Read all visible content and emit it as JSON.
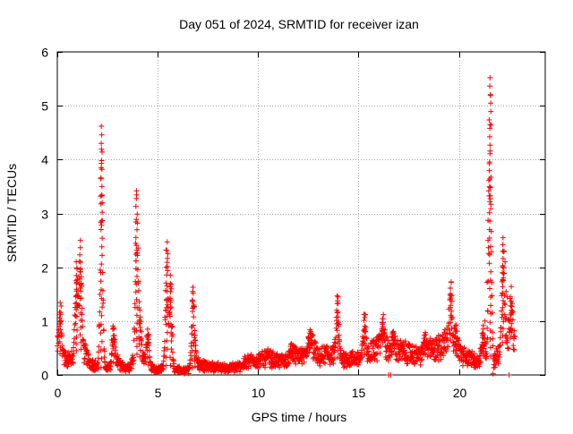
{
  "chart_data": {
    "type": "scatter",
    "title": "Day 051 of 2024, SRMTID for receiver izan",
    "xlabel": "GPS time / hours",
    "ylabel": "SRMTID / TECUs",
    "xlim": [
      0,
      24.3
    ],
    "ylim": [
      0,
      6
    ],
    "x_ticks": [
      0,
      5,
      10,
      15,
      20
    ],
    "y_ticks": [
      0,
      1,
      2,
      3,
      4,
      5,
      6
    ],
    "grid": true,
    "marker": "+",
    "color": "#ff0000",
    "baseline": [
      [
        0,
        0.45
      ],
      [
        0.4,
        0.3
      ],
      [
        0.8,
        0.3
      ],
      [
        1.0,
        0.5
      ],
      [
        1.3,
        0.45
      ],
      [
        1.6,
        0.25
      ],
      [
        2.0,
        0.15
      ],
      [
        2.6,
        0.12
      ],
      [
        2.9,
        0.3
      ],
      [
        3.2,
        0.15
      ],
      [
        3.6,
        0.15
      ],
      [
        3.9,
        0.4
      ],
      [
        4.2,
        0.3
      ],
      [
        4.6,
        0.15
      ],
      [
        5.0,
        0.08
      ],
      [
        5.3,
        0.15
      ],
      [
        5.6,
        0.2
      ],
      [
        5.8,
        0.1
      ],
      [
        6.2,
        0.08
      ],
      [
        6.6,
        0.1
      ],
      [
        7.0,
        0.2
      ],
      [
        7.5,
        0.15
      ],
      [
        8.0,
        0.15
      ],
      [
        8.5,
        0.12
      ],
      [
        9.0,
        0.15
      ],
      [
        9.5,
        0.25
      ],
      [
        10.0,
        0.28
      ],
      [
        10.5,
        0.32
      ],
      [
        11.0,
        0.25
      ],
      [
        11.5,
        0.3
      ],
      [
        12.0,
        0.4
      ],
      [
        12.4,
        0.3
      ],
      [
        12.7,
        0.55
      ],
      [
        13.0,
        0.3
      ],
      [
        13.4,
        0.4
      ],
      [
        13.8,
        0.35
      ],
      [
        14.2,
        0.3
      ],
      [
        14.6,
        0.3
      ],
      [
        15.0,
        0.3
      ],
      [
        15.4,
        0.4
      ],
      [
        15.8,
        0.45
      ],
      [
        16.2,
        0.6
      ],
      [
        16.6,
        0.4
      ],
      [
        17.0,
        0.45
      ],
      [
        17.5,
        0.4
      ],
      [
        18.0,
        0.35
      ],
      [
        18.5,
        0.45
      ],
      [
        19.0,
        0.5
      ],
      [
        19.5,
        0.7
      ],
      [
        19.8,
        0.55
      ],
      [
        20.2,
        0.35
      ],
      [
        20.6,
        0.3
      ],
      [
        21.0,
        0.25
      ],
      [
        21.4,
        0.45
      ],
      [
        21.7,
        0.25
      ],
      [
        22.0,
        0.4
      ],
      [
        22.3,
        0.7
      ],
      [
        22.6,
        0.7
      ],
      [
        22.8,
        0.6
      ]
    ],
    "spikes": [
      {
        "t": 0.15,
        "peak": 1.28
      },
      {
        "t": 0.95,
        "peak": 2.1
      },
      {
        "t": 1.15,
        "peak": 2.5
      },
      {
        "t": 2.2,
        "peak": 4.62
      },
      {
        "t": 2.8,
        "peak": 0.85
      },
      {
        "t": 3.95,
        "peak": 3.42
      },
      {
        "t": 4.1,
        "peak": 1.2
      },
      {
        "t": 4.5,
        "peak": 0.85
      },
      {
        "t": 5.45,
        "peak": 2.47
      },
      {
        "t": 5.65,
        "peak": 1.85
      },
      {
        "t": 6.75,
        "peak": 1.55
      },
      {
        "t": 6.85,
        "peak": 0.55
      },
      {
        "t": 11.7,
        "peak": 0.5
      },
      {
        "t": 12.55,
        "peak": 0.78
      },
      {
        "t": 13.95,
        "peak": 1.45
      },
      {
        "t": 15.3,
        "peak": 1.12
      },
      {
        "t": 16.2,
        "peak": 1.12
      },
      {
        "t": 16.75,
        "peak": 0.78
      },
      {
        "t": 18.3,
        "peak": 0.68
      },
      {
        "t": 19.6,
        "peak": 1.72
      },
      {
        "t": 19.85,
        "peak": 0.72
      },
      {
        "t": 21.2,
        "peak": 0.78
      },
      {
        "t": 21.55,
        "peak": 5.52
      },
      {
        "t": 22.2,
        "peak": 2.55
      },
      {
        "t": 22.6,
        "peak": 1.45
      }
    ],
    "outliers": [
      [
        2.2,
        3.93
      ],
      [
        21.55,
        4.16
      ],
      [
        21.48,
        3.42
      ],
      [
        21.45,
        2.87
      ],
      [
        21.45,
        2.5
      ],
      [
        21.55,
        4.65
      ],
      [
        21.6,
        4.64
      ],
      [
        22.25,
        2.3
      ],
      [
        22.3,
        2.1
      ],
      [
        22.35,
        1.55
      ],
      [
        22.4,
        1.45
      ],
      [
        21.4,
        1.72
      ],
      [
        5.5,
        2.25
      ],
      [
        21.7,
        0.02
      ],
      [
        16.5,
        0.0
      ],
      [
        16.6,
        0.0
      ],
      [
        22.5,
        0.0
      ],
      [
        2.7,
        0.65
      ],
      [
        4.55,
        0.75
      ],
      [
        21.3,
        1.0
      ]
    ]
  }
}
